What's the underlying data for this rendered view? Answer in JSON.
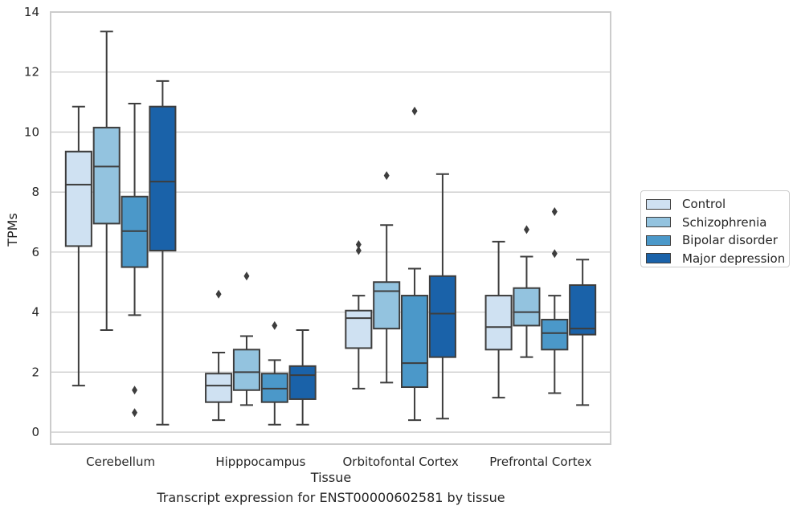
{
  "chart_data": {
    "type": "boxplot",
    "caption": "Transcript expression for ENST00000602581 by tissue",
    "xlabel": "Tissue",
    "ylabel": "TPMs",
    "ylim": [
      -0.4,
      14
    ],
    "yticks": [
      0,
      2,
      4,
      6,
      8,
      10,
      12,
      14
    ],
    "grid": "horizontal",
    "legend_position": "right",
    "categories": [
      "Cerebellum",
      "Hipppocampus",
      "Orbitofontal Cortex",
      "Prefrontal Cortex"
    ],
    "series": [
      {
        "name": "Control",
        "color": "#cfe1f2",
        "boxes": [
          {
            "whisker_low": 1.55,
            "q1": 6.2,
            "median": 8.25,
            "q3": 9.35,
            "whisker_high": 10.85,
            "outliers": []
          },
          {
            "whisker_low": 0.4,
            "q1": 1.0,
            "median": 1.55,
            "q3": 1.95,
            "whisker_high": 2.65,
            "outliers": [
              4.6
            ]
          },
          {
            "whisker_low": 1.45,
            "q1": 2.8,
            "median": 3.8,
            "q3": 4.05,
            "whisker_high": 4.55,
            "outliers": [
              6.05,
              6.25
            ]
          },
          {
            "whisker_low": 1.15,
            "q1": 2.75,
            "median": 3.5,
            "q3": 4.55,
            "whisker_high": 6.35,
            "outliers": []
          }
        ]
      },
      {
        "name": "Schizophrenia",
        "color": "#93c3df",
        "boxes": [
          {
            "whisker_low": 3.4,
            "q1": 6.95,
            "median": 8.85,
            "q3": 10.15,
            "whisker_high": 13.35,
            "outliers": []
          },
          {
            "whisker_low": 0.9,
            "q1": 1.4,
            "median": 2.0,
            "q3": 2.75,
            "whisker_high": 3.2,
            "outliers": [
              5.2
            ]
          },
          {
            "whisker_low": 1.65,
            "q1": 3.45,
            "median": 4.7,
            "q3": 5.0,
            "whisker_high": 6.9,
            "outliers": [
              8.55
            ]
          },
          {
            "whisker_low": 2.5,
            "q1": 3.55,
            "median": 4.0,
            "q3": 4.8,
            "whisker_high": 5.85,
            "outliers": [
              6.75
            ]
          }
        ]
      },
      {
        "name": "Bipolar disorder",
        "color": "#4b98c9",
        "boxes": [
          {
            "whisker_low": 3.9,
            "q1": 5.5,
            "median": 6.7,
            "q3": 7.85,
            "whisker_high": 10.95,
            "outliers": [
              0.65,
              1.4
            ]
          },
          {
            "whisker_low": 0.25,
            "q1": 1.0,
            "median": 1.45,
            "q3": 1.95,
            "whisker_high": 2.4,
            "outliers": [
              3.55
            ]
          },
          {
            "whisker_low": 0.4,
            "q1": 1.5,
            "median": 2.3,
            "q3": 4.55,
            "whisker_high": 5.45,
            "outliers": [
              10.7
            ]
          },
          {
            "whisker_low": 1.3,
            "q1": 2.75,
            "median": 3.3,
            "q3": 3.75,
            "whisker_high": 4.55,
            "outliers": [
              5.95,
              7.35
            ]
          }
        ]
      },
      {
        "name": "Major depression",
        "color": "#1a62a9",
        "boxes": [
          {
            "whisker_low": 0.25,
            "q1": 6.05,
            "median": 8.35,
            "q3": 10.85,
            "whisker_high": 11.7,
            "outliers": []
          },
          {
            "whisker_low": 0.25,
            "q1": 1.1,
            "median": 1.9,
            "q3": 2.2,
            "whisker_high": 3.4,
            "outliers": []
          },
          {
            "whisker_low": 0.45,
            "q1": 2.5,
            "median": 3.95,
            "q3": 5.2,
            "whisker_high": 8.6,
            "outliers": []
          },
          {
            "whisker_low": 0.9,
            "q1": 3.25,
            "median": 3.45,
            "q3": 4.9,
            "whisker_high": 5.75,
            "outliers": []
          }
        ]
      }
    ]
  }
}
